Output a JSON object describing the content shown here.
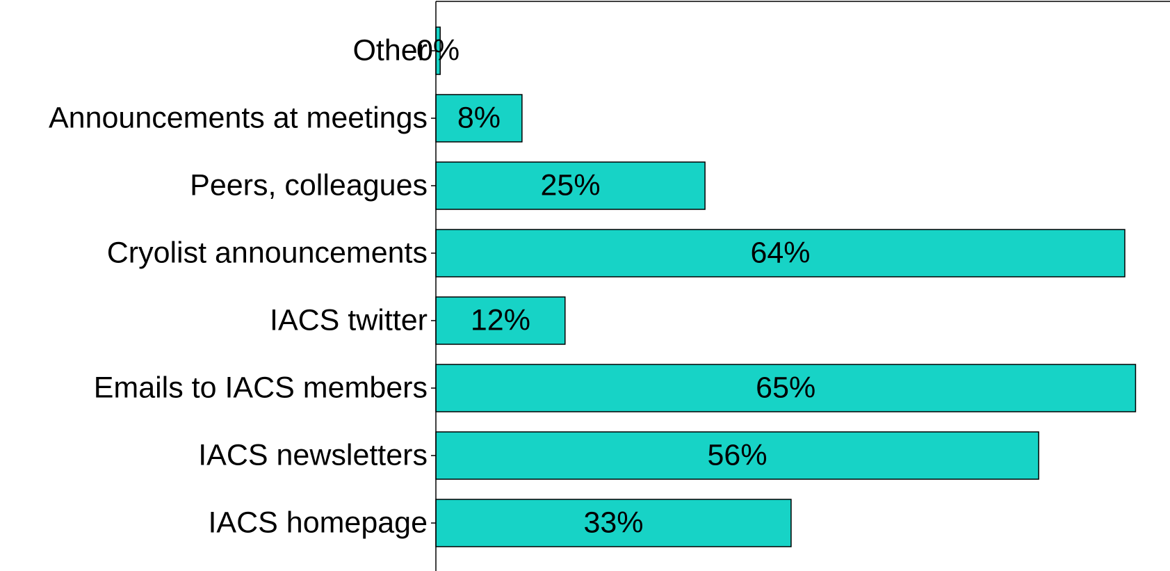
{
  "chart_data": {
    "type": "barh",
    "categories": [
      "Other",
      "Announcements at meetings",
      "Peers, colleagues",
      "Cryolist announcements",
      "IACS twitter",
      "Emails to IACS members",
      "IACS newsletters",
      "IACS homepage"
    ],
    "values": [
      0.4,
      8,
      25,
      64,
      12,
      65,
      56,
      33
    ],
    "value_labels": [
      "0%",
      "8%",
      "25%",
      "64%",
      "12%",
      "65%",
      "56%",
      "33%"
    ],
    "color": "#17d3c6",
    "xlim": [
      0,
      68.2
    ]
  }
}
